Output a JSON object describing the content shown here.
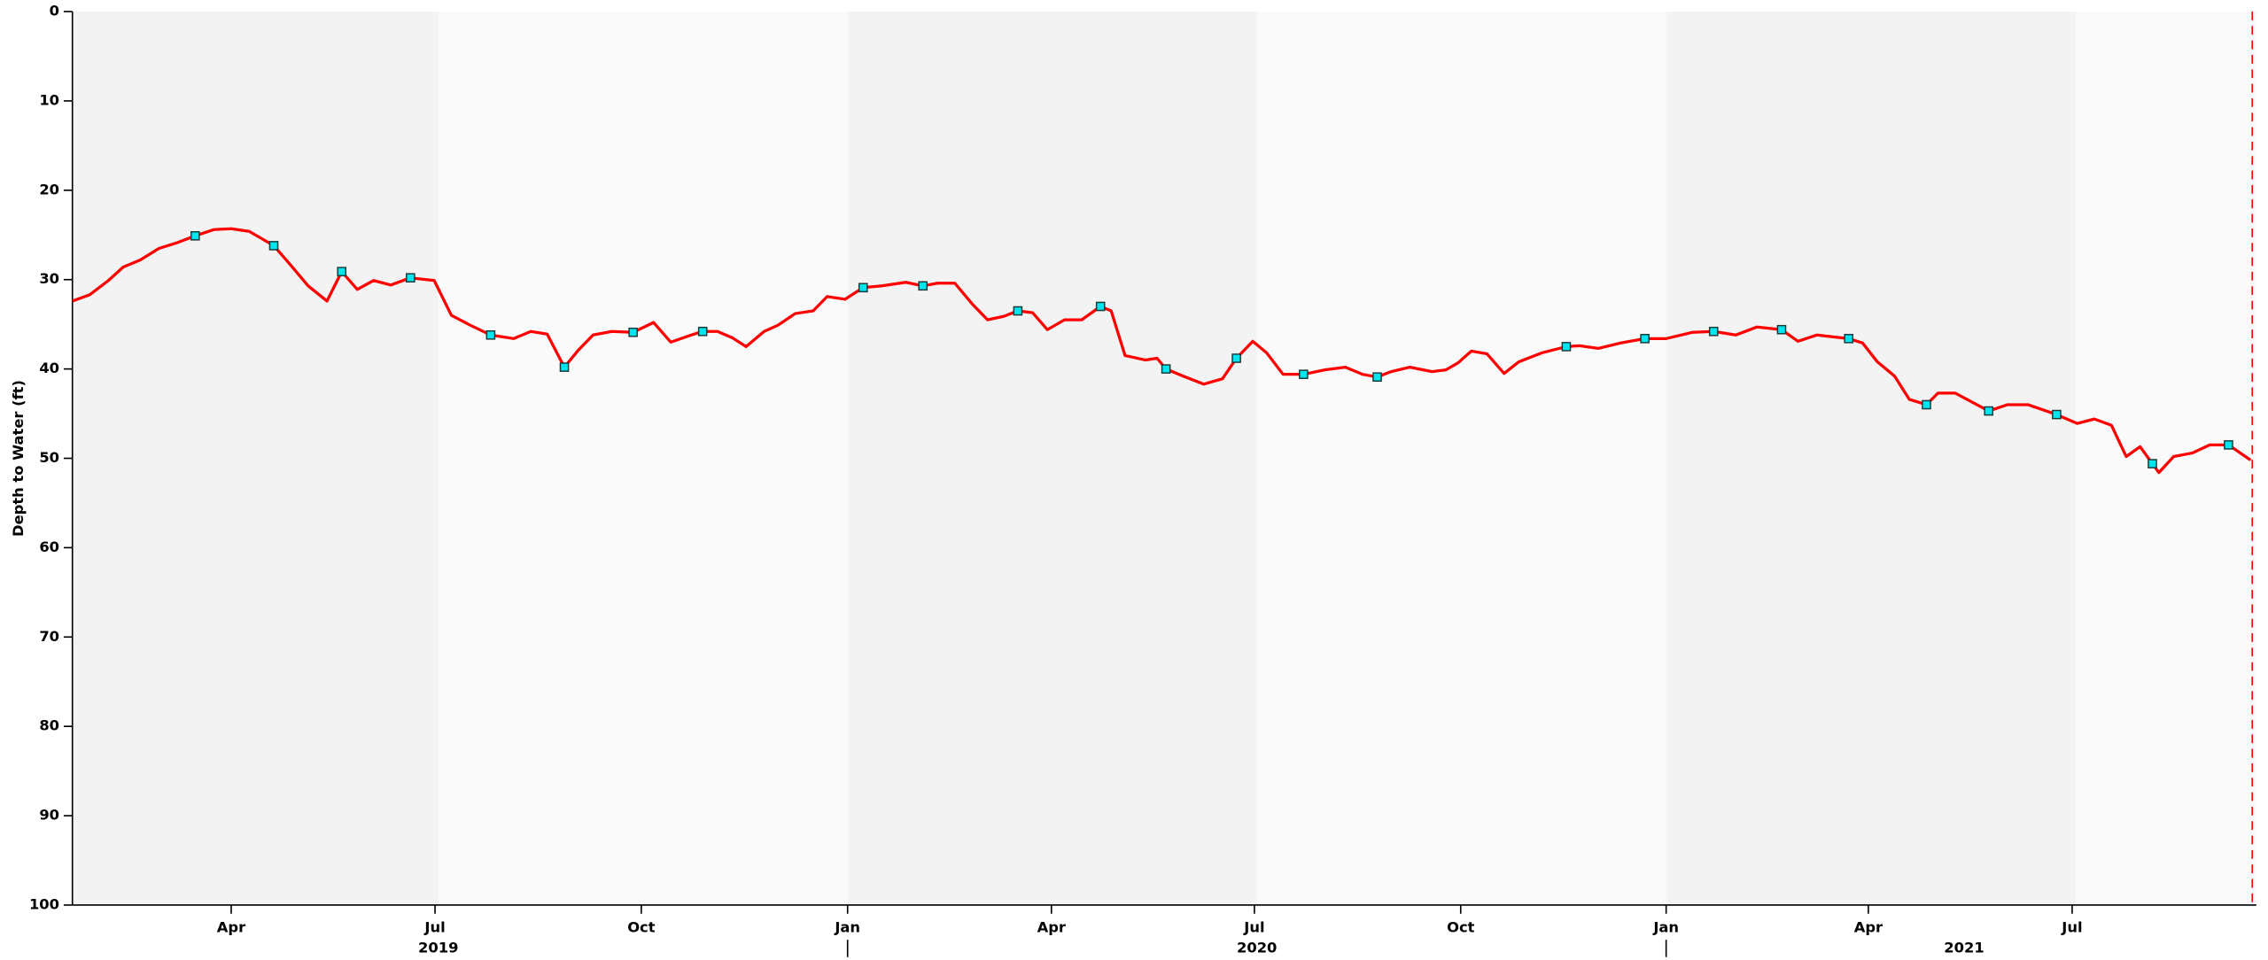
{
  "chart_data": {
    "type": "line",
    "ylabel": "Depth to Water (ft)",
    "ylim": [
      0,
      100
    ],
    "yticks": [
      0,
      10,
      20,
      30,
      40,
      50,
      60,
      70,
      80,
      90,
      100
    ],
    "y_inverted": true,
    "xlim": [
      2019.053,
      2021.721
    ],
    "xticks": [
      {
        "value": 2019.247,
        "label": "Apr"
      },
      {
        "value": 2019.496,
        "label": "Jul"
      },
      {
        "value": 2019.748,
        "label": "Oct"
      },
      {
        "value": 2020.0,
        "label": "Jan"
      },
      {
        "value": 2020.249,
        "label": "Apr"
      },
      {
        "value": 2020.497,
        "label": "Jul"
      },
      {
        "value": 2020.749,
        "label": "Oct"
      },
      {
        "value": 2021.0,
        "label": "Jan"
      },
      {
        "value": 2021.247,
        "label": "Apr"
      },
      {
        "value": 2021.496,
        "label": "Jul"
      }
    ],
    "xticks2": [
      {
        "value": 2019.5,
        "label": "2019"
      },
      {
        "value": 2020.5,
        "label": "2020"
      },
      {
        "value": 2021.364,
        "label": "2021"
      }
    ],
    "reference_line_x": 2021.716,
    "reference_line_color": "#ff0000",
    "series": [
      {
        "color": "#ff0000",
        "x": [
          2019.053,
          2019.074,
          2019.097,
          2019.115,
          2019.136,
          2019.159,
          2019.18,
          2019.203,
          2019.226,
          2019.247,
          2019.269,
          2019.299,
          2019.318,
          2019.341,
          2019.364,
          2019.382,
          2019.401,
          2019.421,
          2019.442,
          2019.466,
          2019.495,
          2019.516,
          2019.539,
          2019.564,
          2019.592,
          2019.613,
          2019.633,
          2019.654,
          2019.671,
          2019.689,
          2019.712,
          2019.738,
          2019.763,
          2019.784,
          2019.809,
          2019.823,
          2019.841,
          2019.859,
          2019.876,
          2019.898,
          2019.915,
          2019.936,
          2019.958,
          2019.975,
          2019.997,
          2020.019,
          2020.042,
          2020.071,
          2020.092,
          2020.11,
          2020.131,
          2020.152,
          2020.171,
          2020.191,
          2020.208,
          2020.226,
          2020.244,
          2020.265,
          2020.286,
          2020.309,
          2020.322,
          2020.339,
          2020.364,
          2020.378,
          2020.389,
          2020.41,
          2020.435,
          2020.458,
          2020.475,
          2020.495,
          2020.512,
          2020.532,
          2020.557,
          2020.583,
          2020.608,
          2020.629,
          2020.647,
          2020.664,
          2020.687,
          2020.714,
          2020.731,
          2020.746,
          2020.762,
          2020.781,
          2020.802,
          2020.82,
          2020.848,
          2020.878,
          2020.894,
          2020.917,
          2020.944,
          2020.974,
          2021.0,
          2021.032,
          2021.058,
          2021.085,
          2021.111,
          2021.141,
          2021.161,
          2021.184,
          2021.223,
          2021.24,
          2021.258,
          2021.279,
          2021.297,
          2021.318,
          2021.332,
          2021.353,
          2021.394,
          2021.417,
          2021.442,
          2021.477,
          2021.502,
          2021.523,
          2021.544,
          2021.562,
          2021.579,
          2021.594,
          2021.602,
          2021.62,
          2021.643,
          2021.664,
          2021.687,
          2021.714
        ],
        "values": [
          32.4,
          31.7,
          30.1,
          28.6,
          27.8,
          26.5,
          25.9,
          25.1,
          24.4,
          24.3,
          24.6,
          26.2,
          28.2,
          30.7,
          32.4,
          29.1,
          31.1,
          30.1,
          30.6,
          29.8,
          30.1,
          34.0,
          35.1,
          36.2,
          36.6,
          35.8,
          36.1,
          39.8,
          37.9,
          36.2,
          35.8,
          35.9,
          34.8,
          37.0,
          36.2,
          35.8,
          35.8,
          36.5,
          37.5,
          35.8,
          35.1,
          33.8,
          33.5,
          31.9,
          32.2,
          30.9,
          30.7,
          30.3,
          30.7,
          30.4,
          30.4,
          32.7,
          34.5,
          34.1,
          33.5,
          33.7,
          35.6,
          34.5,
          34.5,
          33.0,
          33.5,
          38.5,
          39.0,
          38.8,
          40.0,
          40.8,
          41.7,
          41.1,
          38.8,
          36.9,
          38.2,
          40.6,
          40.6,
          40.1,
          39.8,
          40.6,
          40.9,
          40.3,
          39.8,
          40.3,
          40.1,
          39.3,
          38.0,
          38.3,
          40.5,
          39.2,
          38.2,
          37.5,
          37.4,
          37.7,
          37.1,
          36.6,
          36.6,
          35.9,
          35.8,
          36.2,
          35.3,
          35.6,
          36.9,
          36.2,
          36.6,
          37.1,
          39.2,
          40.8,
          43.4,
          44.0,
          42.7,
          42.7,
          44.7,
          44.0,
          44.0,
          45.1,
          46.1,
          45.6,
          46.3,
          49.8,
          48.7,
          50.6,
          51.6,
          49.8,
          49.4,
          48.5,
          48.5,
          50.2
        ]
      },
      {
        "color": "#00e5ee",
        "marker": "square",
        "x": [
          2019.203,
          2019.299,
          2019.382,
          2019.466,
          2019.564,
          2019.654,
          2019.738,
          2019.823,
          2020.019,
          2020.092,
          2020.208,
          2020.309,
          2020.389,
          2020.475,
          2020.557,
          2020.647,
          2020.878,
          2020.974,
          2021.058,
          2021.141,
          2021.223,
          2021.318,
          2021.394,
          2021.477,
          2021.594,
          2021.687
        ],
        "values": [
          25.1,
          26.2,
          29.1,
          29.8,
          36.2,
          39.8,
          35.9,
          35.8,
          30.9,
          30.7,
          33.5,
          33.0,
          40.0,
          38.8,
          40.6,
          40.9,
          37.5,
          36.6,
          35.8,
          35.6,
          36.6,
          44.0,
          44.7,
          45.1,
          50.6,
          48.5
        ]
      }
    ]
  }
}
